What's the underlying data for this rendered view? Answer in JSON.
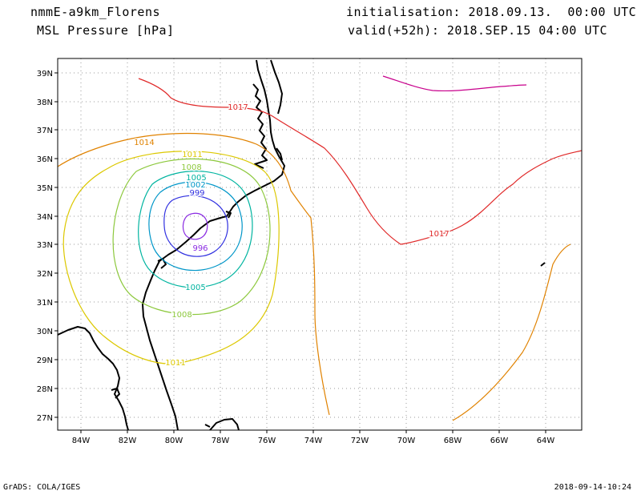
{
  "header": {
    "model": "nmmE-a9km_Florens",
    "variable": "MSL Pressure [hPa]",
    "initialisation": "initialisation: 2018.09.13.  00:00 UTC",
    "valid": "valid(+52h): 2018.SEP.15 04:00 UTC"
  },
  "footer": {
    "credit": "GrADS: COLA/IGES",
    "timestamp": "2018-09-14-10:24"
  },
  "axes": {
    "lon_ticks": [
      "84W",
      "82W",
      "80W",
      "78W",
      "76W",
      "74W",
      "72W",
      "70W",
      "68W",
      "66W",
      "64W"
    ],
    "lat_ticks": [
      "27N",
      "28N",
      "29N",
      "30N",
      "31N",
      "32N",
      "33N",
      "34N",
      "35N",
      "36N",
      "37N",
      "38N",
      "39N"
    ]
  },
  "contours": {
    "996": {
      "label": "996",
      "color": "#8a2be2"
    },
    "999": {
      "label": "999",
      "color": "#3030e0"
    },
    "1002": {
      "label": "1002",
      "color": "#0096c8"
    },
    "1005": {
      "label": "1005",
      "color": "#00b4a0"
    },
    "1008": {
      "label": "1008",
      "color": "#8cc83c"
    },
    "1011": {
      "label": "1011",
      "color": "#dcc800"
    },
    "1014": {
      "label": "1014",
      "color": "#e08200"
    },
    "1017": {
      "label": "1017",
      "color": "#e02828"
    },
    "1020": {
      "color": "#c8008c"
    }
  }
}
